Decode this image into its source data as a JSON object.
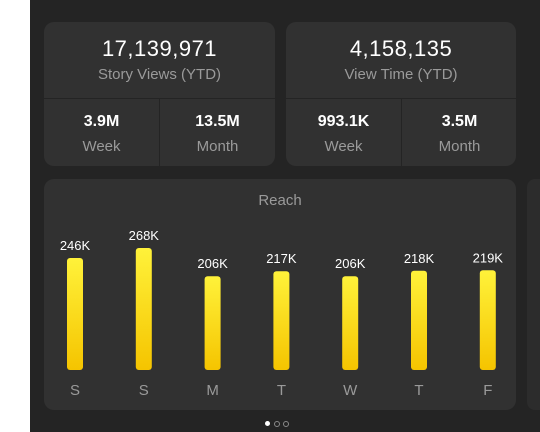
{
  "stats": {
    "story_views": {
      "total": "17,139,971",
      "caption": "Story Views (YTD)",
      "week_value": "3.9M",
      "week_label": "Week",
      "month_value": "13.5M",
      "month_label": "Month"
    },
    "view_time": {
      "total": "4,158,135",
      "caption": "View Time (YTD)",
      "week_value": "993.1K",
      "week_label": "Week",
      "month_value": "3.5M",
      "month_label": "Month"
    }
  },
  "reach": {
    "title": "Reach"
  },
  "chart_data": {
    "type": "bar",
    "title": "Reach",
    "categories": [
      "S",
      "S",
      "M",
      "T",
      "W",
      "T",
      "F"
    ],
    "values": [
      246000,
      268000,
      206000,
      217000,
      206000,
      218000,
      219000
    ],
    "value_labels": [
      "246K",
      "268K",
      "206K",
      "217K",
      "206K",
      "218K",
      "219K"
    ],
    "bar_color_top": "#fff23a",
    "bar_color_bottom": "#f5c400"
  },
  "pager": {
    "count": 3,
    "active": 0
  },
  "colors": {
    "background": "#242424",
    "card": "#313131",
    "text_primary": "#ffffff",
    "text_secondary": "#9a9a9a",
    "accent": "#ffe000"
  }
}
